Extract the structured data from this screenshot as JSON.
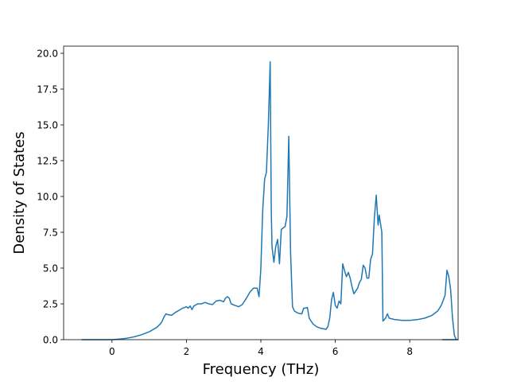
{
  "chart_data": {
    "type": "line",
    "title": "",
    "xlabel": "Frequency (THz)",
    "ylabel": "Density of States",
    "xlim": [
      -1.3,
      9.3
    ],
    "ylim": [
      0,
      20.5
    ],
    "x_ticks": [
      0,
      2,
      4,
      6,
      8
    ],
    "y_ticks": [
      0.0,
      2.5,
      5.0,
      7.5,
      10.0,
      12.5,
      15.0,
      17.5,
      20.0
    ],
    "x_tick_labels": [
      "0",
      "2",
      "4",
      "6",
      "8"
    ],
    "y_tick_labels": [
      "0.0",
      "2.5",
      "5.0",
      "7.5",
      "10.0",
      "12.5",
      "15.0",
      "17.5",
      "20.0"
    ],
    "grid": false,
    "series": [
      {
        "color": "#1f77b4",
        "points": [
          [
            -0.82,
            0.0
          ],
          [
            0.0,
            0.0
          ],
          [
            0.2,
            0.04
          ],
          [
            0.4,
            0.1
          ],
          [
            0.6,
            0.2
          ],
          [
            0.8,
            0.35
          ],
          [
            1.0,
            0.55
          ],
          [
            1.2,
            0.85
          ],
          [
            1.3,
            1.1
          ],
          [
            1.35,
            1.3
          ],
          [
            1.4,
            1.6
          ],
          [
            1.45,
            1.8
          ],
          [
            1.5,
            1.75
          ],
          [
            1.6,
            1.7
          ],
          [
            1.7,
            1.9
          ],
          [
            1.8,
            2.05
          ],
          [
            1.9,
            2.2
          ],
          [
            2.0,
            2.3
          ],
          [
            2.05,
            2.2
          ],
          [
            2.1,
            2.35
          ],
          [
            2.15,
            2.1
          ],
          [
            2.2,
            2.35
          ],
          [
            2.3,
            2.5
          ],
          [
            2.4,
            2.5
          ],
          [
            2.5,
            2.6
          ],
          [
            2.6,
            2.5
          ],
          [
            2.7,
            2.45
          ],
          [
            2.8,
            2.7
          ],
          [
            2.9,
            2.75
          ],
          [
            3.0,
            2.65
          ],
          [
            3.05,
            2.9
          ],
          [
            3.1,
            3.0
          ],
          [
            3.15,
            2.9
          ],
          [
            3.2,
            2.5
          ],
          [
            3.3,
            2.4
          ],
          [
            3.4,
            2.3
          ],
          [
            3.5,
            2.45
          ],
          [
            3.6,
            2.85
          ],
          [
            3.7,
            3.3
          ],
          [
            3.8,
            3.6
          ],
          [
            3.9,
            3.6
          ],
          [
            3.95,
            3.0
          ],
          [
            4.0,
            5.0
          ],
          [
            4.05,
            9.0
          ],
          [
            4.1,
            11.2
          ],
          [
            4.15,
            11.7
          ],
          [
            4.2,
            15.0
          ],
          [
            4.25,
            19.4
          ],
          [
            4.28,
            9.0
          ],
          [
            4.3,
            6.5
          ],
          [
            4.35,
            5.4
          ],
          [
            4.4,
            6.5
          ],
          [
            4.45,
            7.0
          ],
          [
            4.5,
            5.3
          ],
          [
            4.55,
            7.7
          ],
          [
            4.6,
            7.8
          ],
          [
            4.65,
            7.9
          ],
          [
            4.7,
            8.6
          ],
          [
            4.75,
            14.2
          ],
          [
            4.8,
            6.0
          ],
          [
            4.85,
            2.3
          ],
          [
            4.9,
            2.0
          ],
          [
            5.0,
            1.85
          ],
          [
            5.1,
            1.8
          ],
          [
            5.15,
            2.2
          ],
          [
            5.2,
            2.2
          ],
          [
            5.25,
            2.25
          ],
          [
            5.3,
            1.5
          ],
          [
            5.4,
            1.1
          ],
          [
            5.5,
            0.9
          ],
          [
            5.6,
            0.8
          ],
          [
            5.7,
            0.75
          ],
          [
            5.75,
            0.72
          ],
          [
            5.8,
            0.9
          ],
          [
            5.85,
            1.5
          ],
          [
            5.9,
            2.8
          ],
          [
            5.95,
            3.3
          ],
          [
            6.0,
            2.4
          ],
          [
            6.05,
            2.2
          ],
          [
            6.1,
            2.7
          ],
          [
            6.15,
            2.5
          ],
          [
            6.2,
            5.3
          ],
          [
            6.25,
            4.8
          ],
          [
            6.3,
            4.4
          ],
          [
            6.35,
            4.7
          ],
          [
            6.4,
            4.3
          ],
          [
            6.45,
            3.7
          ],
          [
            6.5,
            3.2
          ],
          [
            6.55,
            3.4
          ],
          [
            6.6,
            3.6
          ],
          [
            6.65,
            4.0
          ],
          [
            6.7,
            4.2
          ],
          [
            6.75,
            5.2
          ],
          [
            6.8,
            5.0
          ],
          [
            6.85,
            4.3
          ],
          [
            6.9,
            4.3
          ],
          [
            6.95,
            5.6
          ],
          [
            7.0,
            6.0
          ],
          [
            7.05,
            8.5
          ],
          [
            7.1,
            10.1
          ],
          [
            7.15,
            8.0
          ],
          [
            7.18,
            8.7
          ],
          [
            7.25,
            7.5
          ],
          [
            7.28,
            1.3
          ],
          [
            7.35,
            1.5
          ],
          [
            7.4,
            1.8
          ],
          [
            7.45,
            1.5
          ],
          [
            7.6,
            1.4
          ],
          [
            7.8,
            1.35
          ],
          [
            8.0,
            1.35
          ],
          [
            8.2,
            1.4
          ],
          [
            8.4,
            1.5
          ],
          [
            8.6,
            1.7
          ],
          [
            8.75,
            2.0
          ],
          [
            8.85,
            2.4
          ],
          [
            8.95,
            3.1
          ],
          [
            9.0,
            4.85
          ],
          [
            9.05,
            4.4
          ],
          [
            9.1,
            3.5
          ],
          [
            9.15,
            1.5
          ],
          [
            9.2,
            0.3
          ],
          [
            9.25,
            0.0
          ],
          [
            9.3,
            0.0
          ],
          [
            8.87,
            0.0
          ]
        ]
      }
    ]
  }
}
